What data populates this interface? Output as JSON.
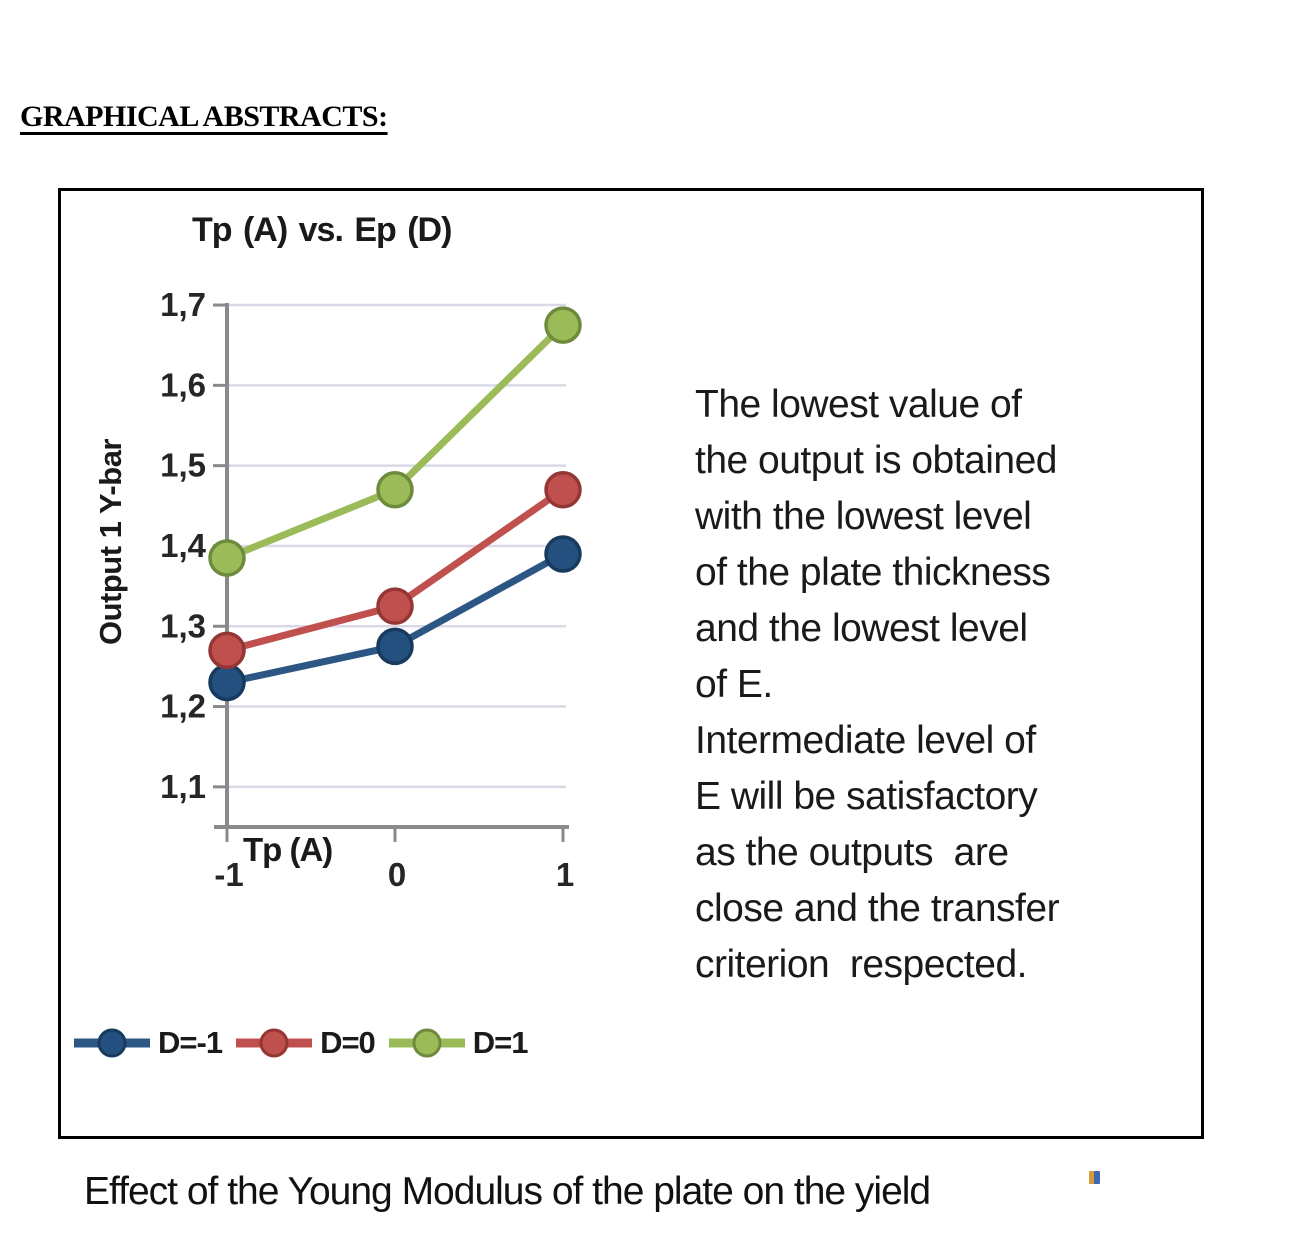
{
  "page": {
    "heading": "GRAPHICAL ABSTRACTS:",
    "caption": "Effect of the Young Modulus of the plate on the yield"
  },
  "abstract_box": {
    "annotation_lines": [
      "The lowest value of",
      "the output is obtained",
      "with the lowest level",
      "of the plate thickness",
      "and the lowest level",
      "of E.",
      "Intermediate level of",
      "E will be satisfactory",
      "as the outputs  are",
      "close and the transfer",
      "criterion  respected."
    ]
  },
  "chart_data": {
    "type": "line",
    "title": "Tp (A) vs. Ep (D)",
    "xlabel": "Tp (A)",
    "ylabel": "Output 1 Y-bar",
    "x": [
      -1,
      0,
      1
    ],
    "x_tick_labels": [
      "-1",
      "0",
      "1"
    ],
    "y_ticks": [
      1.7,
      1.6,
      1.5,
      1.4,
      1.3,
      1.2,
      1.1
    ],
    "y_tick_labels": [
      "1,7",
      "1,6",
      "1,5",
      "1,4",
      "1,3",
      "1,2",
      "1,1"
    ],
    "ylim": [
      1.05,
      1.7
    ],
    "grid": true,
    "legend_position": "bottom-left",
    "series": [
      {
        "name": "D=-1",
        "values": [
          1.23,
          1.275,
          1.39
        ],
        "color": "#24507F",
        "line_color": "#2C5784",
        "marker_stroke": "#173A5E"
      },
      {
        "name": "D=0",
        "values": [
          1.27,
          1.325,
          1.47
        ],
        "color": "#C0504D",
        "line_color": "#C0504D",
        "marker_stroke": "#943634"
      },
      {
        "name": "D=1",
        "values": [
          1.385,
          1.47,
          1.675
        ],
        "color": "#9BBB59",
        "line_color": "#9BBB59",
        "marker_stroke": "#6E8B3D"
      }
    ],
    "axis_color": "#8A8A8A",
    "grid_color": "#DBD9E8",
    "tick_text_color": "#262626"
  }
}
